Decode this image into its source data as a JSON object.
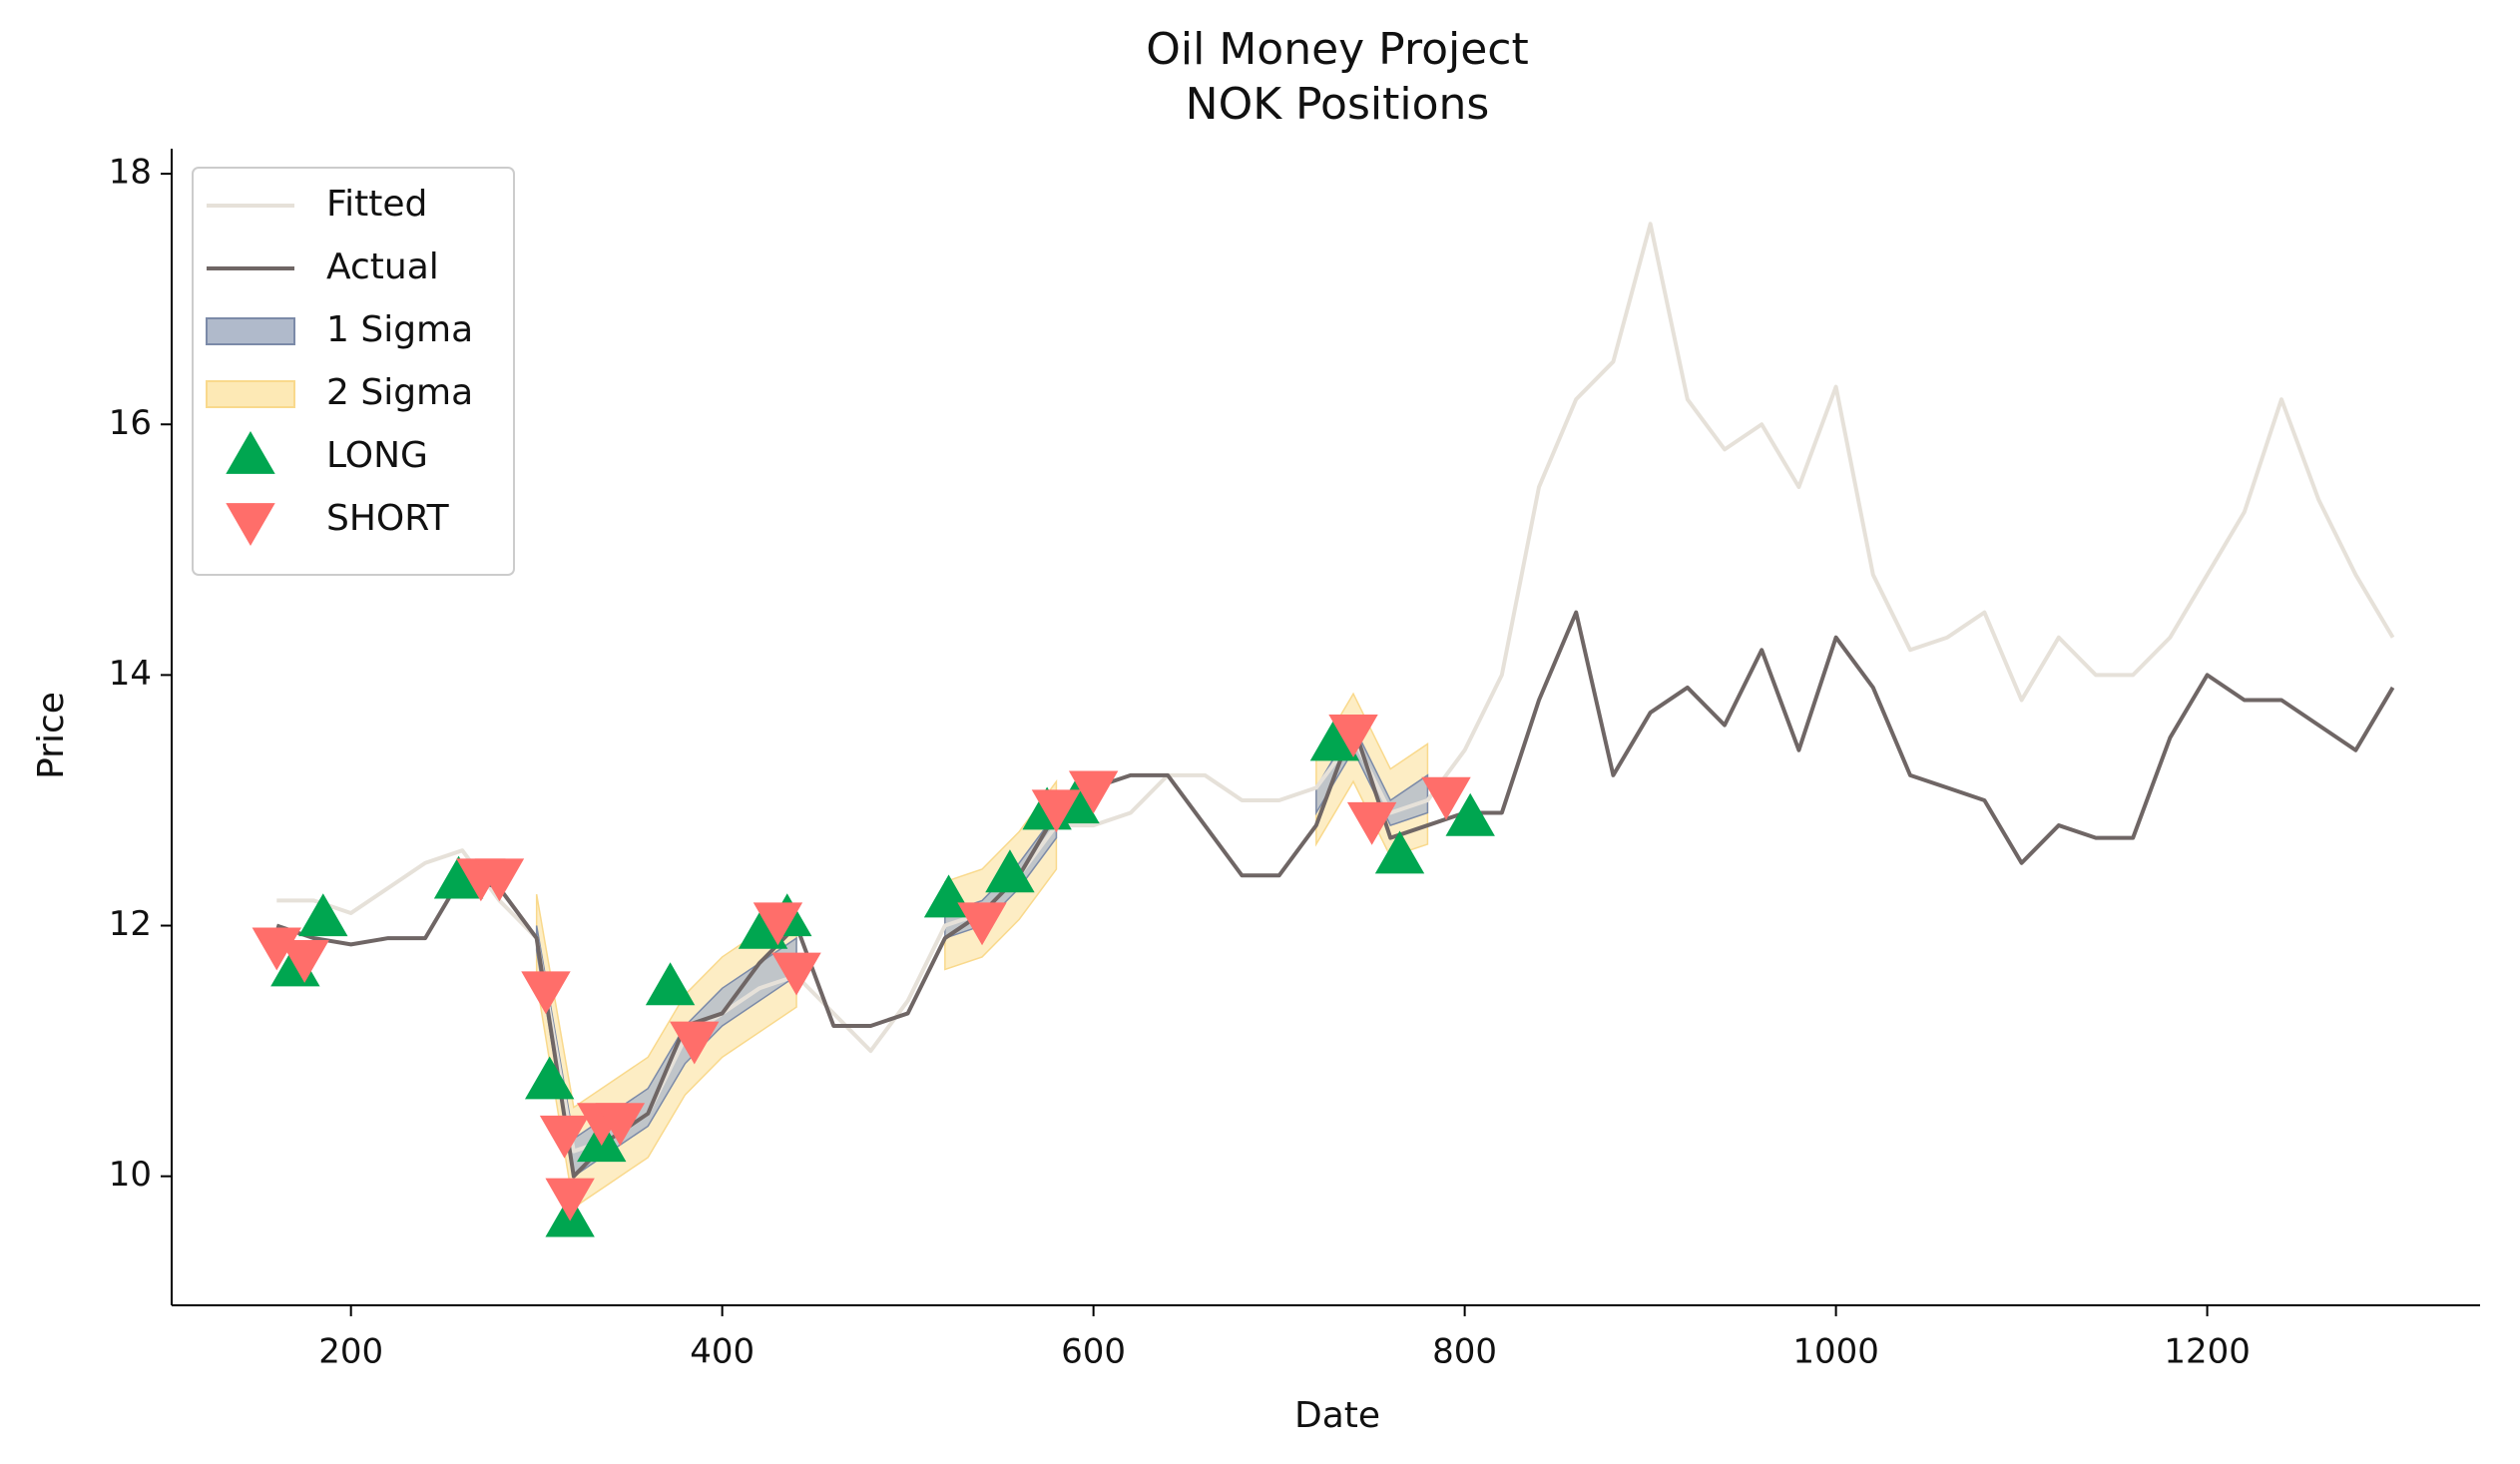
{
  "chart_data": {
    "type": "line",
    "title": "Oil Money Project",
    "subtitle": "NOK Positions",
    "x_label": "Date",
    "y_label": "Price",
    "xlim": [
      103.4,
      1347
    ],
    "ylim": [
      8.97,
      18.2
    ],
    "xticks": [
      200,
      400,
      600,
      800,
      1000,
      1200
    ],
    "yticks": [
      10,
      12,
      14,
      16,
      18
    ],
    "grid": false,
    "legend": "upper left",
    "x": [
      160,
      180,
      200,
      220,
      240,
      260,
      280,
      300,
      320,
      340,
      360,
      380,
      400,
      420,
      440,
      460,
      480,
      500,
      520,
      540,
      560,
      580,
      600,
      620,
      640,
      660,
      680,
      700,
      720,
      740,
      760,
      780,
      800,
      820,
      840,
      860,
      880,
      900,
      920,
      940,
      960,
      980,
      1000,
      1020,
      1040,
      1060,
      1080,
      1100,
      1120,
      1140,
      1160,
      1180,
      1200,
      1220,
      1240,
      1260,
      1280,
      1300
    ],
    "series": [
      {
        "name": "Fitted",
        "color": "#e6e1d9",
        "values": [
          12.2,
          12.2,
          12.1,
          12.3,
          12.5,
          12.6,
          12.2,
          11.9,
          10.2,
          10.3,
          10.5,
          11.1,
          11.3,
          11.5,
          11.6,
          11.3,
          11.0,
          11.4,
          12.0,
          12.1,
          12.4,
          12.8,
          12.8,
          12.9,
          13.2,
          13.2,
          13.0,
          13.0,
          13.1,
          13.5,
          12.9,
          13.0,
          13.4,
          14.0,
          15.5,
          16.2,
          16.5,
          17.6,
          16.2,
          15.8,
          16.0,
          15.5,
          16.3,
          14.8,
          14.2,
          14.3,
          14.5,
          13.8,
          14.3,
          14.0,
          14.0,
          14.3,
          14.8,
          15.3,
          16.2,
          15.4,
          14.8,
          14.3
        ]
      },
      {
        "name": "Actual",
        "color": "#6f6665",
        "values": [
          12.0,
          11.9,
          11.85,
          11.9,
          11.9,
          12.4,
          12.3,
          11.9,
          10.0,
          10.3,
          10.5,
          11.2,
          11.3,
          11.7,
          12.0,
          11.2,
          11.2,
          11.3,
          11.9,
          12.1,
          12.4,
          12.9,
          13.1,
          13.2,
          13.2,
          12.8,
          12.4,
          12.4,
          12.8,
          13.6,
          12.7,
          12.8,
          12.9,
          12.9,
          13.8,
          14.5,
          13.2,
          13.7,
          13.9,
          13.6,
          14.2,
          13.4,
          14.3,
          13.9,
          13.2,
          13.1,
          13.0,
          12.5,
          12.8,
          12.7,
          12.7,
          13.5,
          14.0,
          13.8,
          13.8,
          13.6,
          13.4,
          13.9
        ]
      }
    ],
    "bands": [
      {
        "name": "2 Sigma",
        "color": "#fde9b5",
        "edge_color": "#f9d98c",
        "lower": [
          null,
          null,
          null,
          null,
          null,
          null,
          null,
          11.55,
          9.75,
          9.95,
          10.15,
          10.65,
          10.95,
          11.15,
          11.35,
          null,
          null,
          null,
          11.65,
          11.75,
          12.05,
          12.45,
          null,
          null,
          null,
          null,
          null,
          null,
          12.65,
          13.15,
          12.55,
          12.65,
          null,
          null,
          null,
          null,
          null,
          null,
          null,
          null,
          null,
          null,
          null,
          null,
          null,
          null,
          null,
          null,
          null,
          null,
          null,
          null,
          null,
          null,
          null,
          null,
          null,
          null
        ],
        "upper": [
          null,
          null,
          null,
          null,
          null,
          null,
          null,
          12.25,
          10.55,
          10.75,
          10.95,
          11.45,
          11.75,
          11.95,
          12.15,
          null,
          null,
          null,
          12.35,
          12.45,
          12.75,
          13.15,
          null,
          null,
          null,
          null,
          null,
          null,
          13.35,
          13.85,
          13.25,
          13.45,
          null,
          null,
          null,
          null,
          null,
          null,
          null,
          null,
          null,
          null,
          null,
          null,
          null,
          null,
          null,
          null,
          null,
          null,
          null,
          null,
          null,
          null,
          null,
          null,
          null,
          null
        ]
      },
      {
        "name": "1 Sigma",
        "color": "#b0bacb",
        "edge_color": "#7b8aa8",
        "lower": [
          null,
          null,
          null,
          null,
          null,
          null,
          null,
          11.8,
          10.0,
          10.2,
          10.4,
          10.9,
          11.2,
          11.4,
          11.6,
          null,
          null,
          null,
          11.9,
          12.0,
          12.3,
          12.7,
          null,
          null,
          null,
          null,
          null,
          null,
          12.9,
          13.4,
          12.8,
          12.9,
          null,
          null,
          null,
          null,
          null,
          null,
          null,
          null,
          null,
          null,
          null,
          null,
          null,
          null,
          null,
          null,
          null,
          null,
          null,
          null,
          null,
          null,
          null,
          null,
          null,
          null
        ],
        "upper": [
          null,
          null,
          null,
          null,
          null,
          null,
          null,
          12.0,
          10.3,
          10.5,
          10.7,
          11.2,
          11.5,
          11.7,
          11.9,
          null,
          null,
          null,
          12.1,
          12.2,
          12.5,
          12.9,
          null,
          null,
          null,
          null,
          null,
          null,
          13.1,
          13.6,
          13.0,
          13.2,
          null,
          null,
          null,
          null,
          null,
          null,
          null,
          null,
          null,
          null,
          null,
          null,
          null,
          null,
          null,
          null,
          null,
          null,
          null,
          null,
          null,
          null,
          null,
          null,
          null,
          null
        ]
      }
    ],
    "markers": [
      {
        "name": "LONG",
        "color": "#00a650",
        "marker": "triangle-up",
        "x": [
          170,
          185,
          258,
          307,
          318,
          335,
          372,
          422,
          435,
          522,
          555,
          575,
          590,
          730,
          765,
          803
        ],
        "values": [
          11.65,
          12.05,
          12.35,
          10.75,
          9.65,
          10.25,
          11.5,
          11.95,
          12.05,
          12.2,
          12.4,
          12.9,
          12.95,
          13.45,
          12.55,
          12.85
        ]
      },
      {
        "name": "SHORT",
        "color": "#ff6e6a",
        "marker": "triangle-down",
        "x": [
          160,
          175,
          270,
          280,
          305,
          315,
          318,
          335,
          345,
          385,
          430,
          440,
          540,
          580,
          600,
          740,
          750,
          790
        ],
        "values": [
          11.85,
          11.75,
          12.4,
          12.4,
          11.5,
          10.35,
          9.85,
          10.45,
          10.45,
          11.1,
          12.05,
          11.65,
          12.05,
          12.95,
          13.1,
          13.55,
          12.85,
          13.05
        ]
      }
    ]
  }
}
